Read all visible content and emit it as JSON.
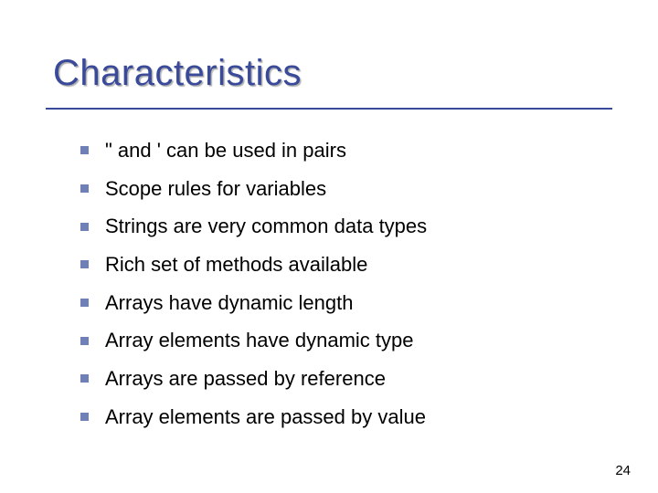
{
  "slide": {
    "title": "Characteristics",
    "title_color": "#3a4a9a",
    "underline_color": "#3a4a9a",
    "text_color": "#000000",
    "bullet_color": "#6f7fb8",
    "background_color": "#ffffff",
    "title_fontsize": 40,
    "body_fontsize": 22,
    "bullets": [
      "\" and ' can be used in pairs",
      "Scope rules for variables",
      "Strings are very common data types",
      "Rich set of methods available",
      "Arrays have dynamic length",
      "Array elements have dynamic type",
      "Arrays are passed by reference",
      "Array elements are passed by value"
    ],
    "page_number": "24"
  }
}
